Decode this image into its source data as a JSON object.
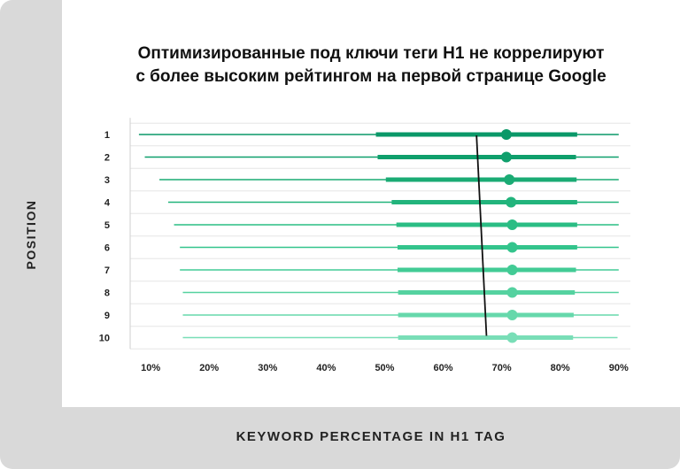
{
  "chart_data": {
    "type": "interval",
    "title_line1": "Оптимизированные под ключи теги H1 не коррелируют",
    "title_line2": "с более высоким рейтингом на первой странице Google",
    "xlabel": "KEYWORD PERCENTAGE IN H1 TAG",
    "ylabel": "POSITION",
    "x_ticks": [
      10,
      20,
      30,
      40,
      50,
      60,
      70,
      80,
      90
    ],
    "x_tick_labels": [
      "10%",
      "20%",
      "30%",
      "40%",
      "50%",
      "60%",
      "70%",
      "80%",
      "90%"
    ],
    "xlim": [
      6.5,
      92
    ],
    "positions": [
      "1",
      "2",
      "3",
      "4",
      "5",
      "6",
      "7",
      "8",
      "9",
      "10"
    ],
    "whisker_low": [
      8,
      9,
      11.5,
      13,
      14,
      15,
      15,
      15.5,
      15.5,
      15.5
    ],
    "whisker_high": [
      90,
      90,
      90,
      90,
      90,
      90,
      90,
      90,
      90,
      89.8
    ],
    "iqr_low": [
      48.5,
      48.8,
      50.2,
      51.2,
      52,
      52.2,
      52.2,
      52.3,
      52.3,
      52.3
    ],
    "iqr_high": [
      82.9,
      82.7,
      82.8,
      82.9,
      82.9,
      82.9,
      82.7,
      82.5,
      82.3,
      82.2
    ],
    "median": [
      70.8,
      70.8,
      71.3,
      71.6,
      71.8,
      71.8,
      71.8,
      71.8,
      71.8,
      71.8
    ],
    "trend_line": {
      "start": [
        65.7,
        "1"
      ],
      "end": [
        67.4,
        "10"
      ]
    },
    "colors": [
      "#0a9868",
      "#0f9f6c",
      "#1aab74",
      "#22b47c",
      "#2abd84",
      "#33c48c",
      "#42cb95",
      "#55d2a0",
      "#66d8ab",
      "#79deb7"
    ],
    "grid": true
  }
}
